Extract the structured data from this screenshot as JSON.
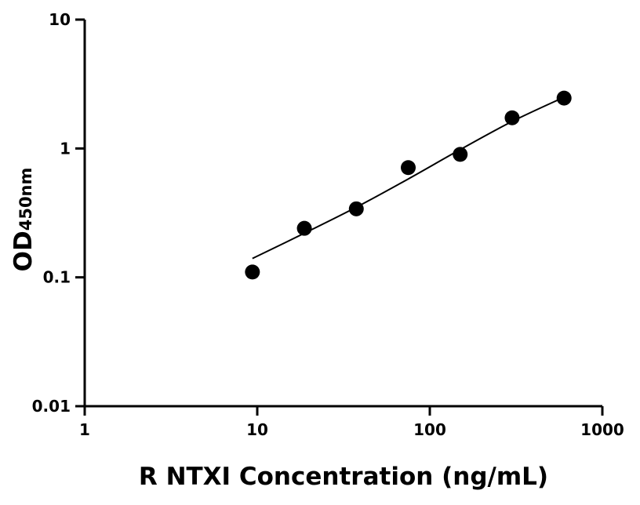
{
  "chart_data": {
    "type": "scatter",
    "title": "",
    "xlabel": "R NTXI Concentration (ng/mL)",
    "ylabel": "OD",
    "ylabel_sub": "450nm",
    "xscale": "log",
    "yscale": "log",
    "xlim": [
      1,
      1000
    ],
    "ylim": [
      0.01,
      10
    ],
    "xticks": [
      {
        "v": 1,
        "label": "1"
      },
      {
        "v": 10,
        "label": "10"
      },
      {
        "v": 100,
        "label": "100"
      },
      {
        "v": 1000,
        "label": "1000"
      }
    ],
    "yticks": [
      {
        "v": 0.01,
        "label": "0.01"
      },
      {
        "v": 0.1,
        "label": "0.1"
      },
      {
        "v": 1,
        "label": "1"
      },
      {
        "v": 10,
        "label": "10"
      }
    ],
    "grid": false,
    "points": {
      "x": [
        9.375,
        18.75,
        37.5,
        75,
        150,
        300,
        600
      ],
      "y": [
        0.11,
        0.24,
        0.34,
        0.71,
        0.9,
        1.73,
        2.46
      ]
    },
    "fit_curve": {
      "x": [
        9.375,
        18.75,
        37.5,
        75,
        150,
        300,
        600
      ],
      "y": [
        0.14,
        0.22,
        0.35,
        0.58,
        0.98,
        1.62,
        2.5
      ]
    },
    "colors": {
      "points": "#000000",
      "curve": "#000000",
      "axes": "#000000"
    }
  }
}
